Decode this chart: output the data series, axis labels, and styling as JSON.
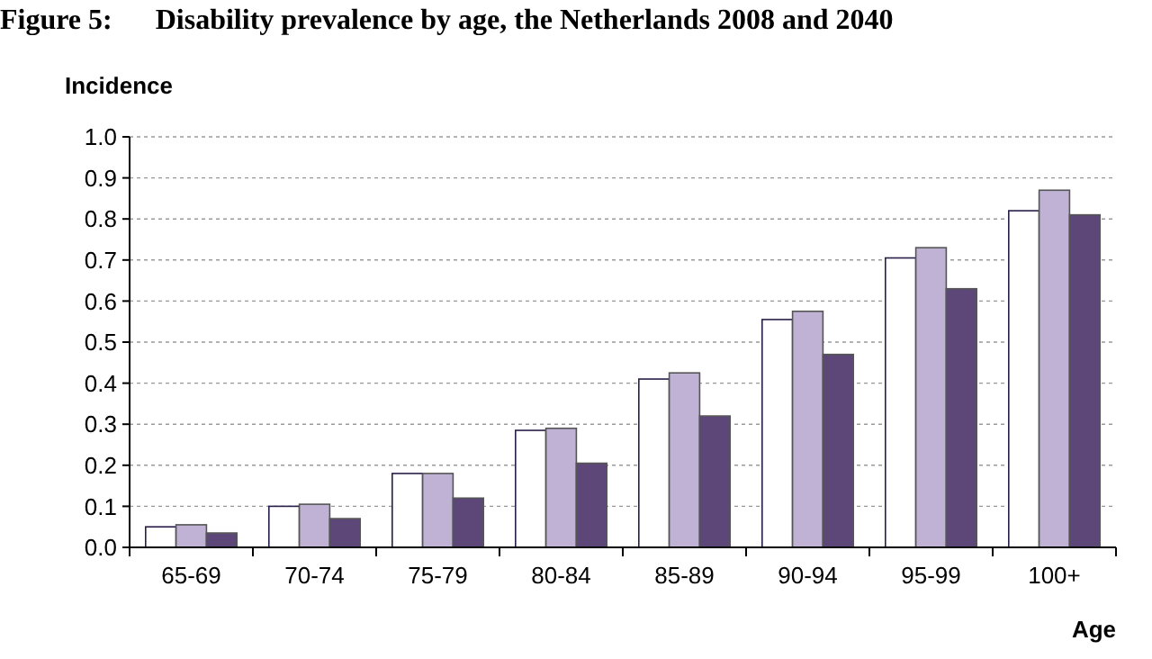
{
  "chart_data": {
    "type": "bar",
    "title": "Figure 5:      Disability prevalence by age, the Netherlands 2008 and 2040",
    "ylabel": "Incidence",
    "xlabel": "Age",
    "categories": [
      "65-69",
      "70-74",
      "75-79",
      "80-84",
      "85-89",
      "90-94",
      "95-99",
      "100+"
    ],
    "series": [
      {
        "color": "#ffffff",
        "values": [
          0.05,
          0.1,
          0.18,
          0.285,
          0.41,
          0.555,
          0.705,
          0.82
        ]
      },
      {
        "color": "#c0b2d4",
        "values": [
          0.055,
          0.105,
          0.18,
          0.29,
          0.425,
          0.575,
          0.73,
          0.87
        ]
      },
      {
        "color": "#5c4778",
        "values": [
          0.035,
          0.07,
          0.12,
          0.205,
          0.32,
          0.47,
          0.63,
          0.81
        ]
      }
    ],
    "ylim": [
      0,
      1
    ],
    "yticks": [
      {
        "value": 0,
        "label": "0.0"
      },
      {
        "value": 0.1,
        "label": "0.1"
      },
      {
        "value": 0.2,
        "label": "0.2"
      },
      {
        "value": 0.3,
        "label": "0.3"
      },
      {
        "value": 0.4,
        "label": "0.4"
      },
      {
        "value": 0.5,
        "label": "0.5"
      },
      {
        "value": 0.6,
        "label": "0.6"
      },
      {
        "value": 0.7,
        "label": "0.7"
      },
      {
        "value": 0.8,
        "label": "0.8"
      },
      {
        "value": 0.9,
        "label": "0.9"
      },
      {
        "value": 1,
        "label": "1.0"
      }
    ],
    "grid": "y"
  }
}
